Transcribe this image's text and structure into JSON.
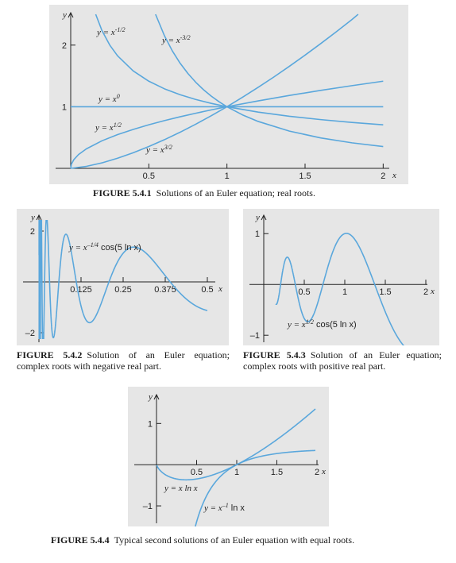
{
  "colors": {
    "background": "#e6e6e6",
    "curve": "#5aa7dc",
    "axis": "#222222",
    "text": "#1a1a1a"
  },
  "captions": {
    "fig1_num": "FIGURE 5.4.1",
    "fig1_text": "Solutions of an Euler equation; real roots.",
    "fig2_num": "FIGURE 5.4.2",
    "fig2_text": "Solution of an Euler equation; complex roots with negative real part.",
    "fig3_num": "FIGURE 5.4.3",
    "fig3_text": "Solution of an Euler equation; complex roots with positive real part.",
    "fig4_num": "FIGURE 5.4.4",
    "fig4_text": "Typical second solutions of an Euler equation with equal roots."
  },
  "chart_data": [
    {
      "type": "line",
      "figure": "FIGURE 5.4.1",
      "xlabel": "x",
      "ylabel": "y",
      "xlim": [
        0,
        2.1
      ],
      "ylim": [
        0,
        2.5
      ],
      "x_ticks": [
        {
          "v": 0.5,
          "label": "0.5"
        },
        {
          "v": 1,
          "label": "1"
        },
        {
          "v": 1.5,
          "label": "1.5"
        },
        {
          "v": 2,
          "label": "2"
        }
      ],
      "y_ticks": [
        {
          "v": 1,
          "label": "1"
        },
        {
          "v": 2,
          "label": "2"
        }
      ],
      "series": [
        {
          "name": "y = x^(-1/2)",
          "label_base": "y = x",
          "label_sup": "-1/2",
          "x": [
            0.16,
            0.2,
            0.25,
            0.3,
            0.4,
            0.5,
            0.6,
            0.7,
            0.8,
            0.9,
            1.0,
            1.2,
            1.4,
            1.6,
            1.8,
            2.0
          ],
          "y": [
            2.5,
            2.236,
            2.0,
            1.826,
            1.581,
            1.414,
            1.291,
            1.195,
            1.118,
            1.054,
            1.0,
            0.913,
            0.845,
            0.791,
            0.745,
            0.707
          ]
        },
        {
          "name": "y = x^(-3/2)",
          "label_base": "y = x",
          "label_sup": "-3/2",
          "x": [
            0.543,
            0.6,
            0.65,
            0.7,
            0.75,
            0.8,
            0.85,
            0.9,
            0.95,
            1.0,
            1.1,
            1.2,
            1.4,
            1.6,
            1.8,
            2.0
          ],
          "y": [
            2.5,
            2.152,
            1.908,
            1.707,
            1.54,
            1.398,
            1.276,
            1.171,
            1.08,
            1.0,
            0.867,
            0.761,
            0.604,
            0.494,
            0.414,
            0.354
          ]
        },
        {
          "name": "y = x^0",
          "label_base": "y = x",
          "label_sup": "0",
          "x": [
            0.0,
            2.0
          ],
          "y": [
            1.0,
            1.0
          ]
        },
        {
          "name": "y = x^(1/2)",
          "label_base": "y = x",
          "label_sup": "1/2",
          "x": [
            0.0,
            0.005,
            0.02,
            0.05,
            0.1,
            0.2,
            0.3,
            0.4,
            0.5,
            0.6,
            0.7,
            0.8,
            0.9,
            1.0,
            1.2,
            1.4,
            1.6,
            1.8,
            2.0
          ],
          "y": [
            0.0,
            0.071,
            0.141,
            0.224,
            0.316,
            0.447,
            0.548,
            0.632,
            0.707,
            0.775,
            0.837,
            0.894,
            0.949,
            1.0,
            1.095,
            1.183,
            1.265,
            1.342,
            1.414
          ]
        },
        {
          "name": "y = x^(3/2)",
          "label_base": "y = x",
          "label_sup": "3/2",
          "x": [
            0.0,
            0.1,
            0.2,
            0.3,
            0.4,
            0.5,
            0.6,
            0.7,
            0.8,
            0.9,
            1.0,
            1.1,
            1.2,
            1.3,
            1.4,
            1.5,
            1.6,
            1.7,
            1.8,
            1.84
          ],
          "y": [
            0.0,
            0.032,
            0.089,
            0.164,
            0.253,
            0.354,
            0.465,
            0.586,
            0.716,
            0.854,
            1.0,
            1.154,
            1.315,
            1.482,
            1.657,
            1.837,
            2.024,
            2.217,
            2.415,
            2.5
          ]
        }
      ]
    },
    {
      "type": "line",
      "figure": "FIGURE 5.4.2",
      "xlabel": "x",
      "ylabel": "y",
      "xlim": [
        0,
        0.5
      ],
      "ylim": [
        -2.5,
        2.5
      ],
      "x_ticks": [
        {
          "v": 0.125,
          "label": "0.125"
        },
        {
          "v": 0.25,
          "label": "0.25"
        },
        {
          "v": 0.375,
          "label": "0.375"
        },
        {
          "v": 0.5,
          "label": "0.5"
        }
      ],
      "y_ticks": [
        {
          "v": 2,
          "label": "2"
        },
        {
          "v": -2,
          "label": "–2"
        }
      ],
      "function": "y = x^(-1/4) cos(5 ln x)",
      "label_base": "y = x",
      "label_sup": "–1/4",
      "label_tail": " cos(5 ln x)",
      "series": [
        {
          "name": "y = x^(-1/4) cos(5 ln x)"
        }
      ]
    },
    {
      "type": "line",
      "figure": "FIGURE 5.4.3",
      "xlabel": "x",
      "ylabel": "y",
      "xlim": [
        0,
        2
      ],
      "ylim": [
        -1.2,
        1.3
      ],
      "x_ticks": [
        {
          "v": 0.5,
          "label": "0.5"
        },
        {
          "v": 1,
          "label": "1"
        },
        {
          "v": 1.5,
          "label": "1.5"
        },
        {
          "v": 2,
          "label": "2"
        }
      ],
      "y_ticks": [
        {
          "v": 1,
          "label": "1"
        },
        {
          "v": -1,
          "label": "–1"
        }
      ],
      "function": "y = x^(1/2) cos(5 ln x)",
      "label_base": "y = x",
      "label_sup": "1/2",
      "label_tail": " cos(5 ln x)",
      "series": [
        {
          "name": "y = x^(1/2) cos(5 ln x)"
        }
      ]
    },
    {
      "type": "line",
      "figure": "FIGURE 5.4.4",
      "xlabel": "x",
      "ylabel": "y",
      "xlim": [
        0,
        2
      ],
      "ylim": [
        -1.5,
        1.7
      ],
      "x_ticks": [
        {
          "v": 0.5,
          "label": "0.5"
        },
        {
          "v": 1,
          "label": "1"
        },
        {
          "v": 1.5,
          "label": "1.5"
        },
        {
          "v": 2,
          "label": "2"
        }
      ],
      "y_ticks": [
        {
          "v": 1,
          "label": "1"
        },
        {
          "v": -1,
          "label": "–1"
        }
      ],
      "series": [
        {
          "name": "y = x ln x",
          "label_base": "y = x ln x",
          "label_sup": "",
          "label_tail": ""
        },
        {
          "name": "y = x^(-1) ln x",
          "label_base": "y = x",
          "label_sup": "–1",
          "label_tail": " ln x"
        }
      ]
    }
  ]
}
